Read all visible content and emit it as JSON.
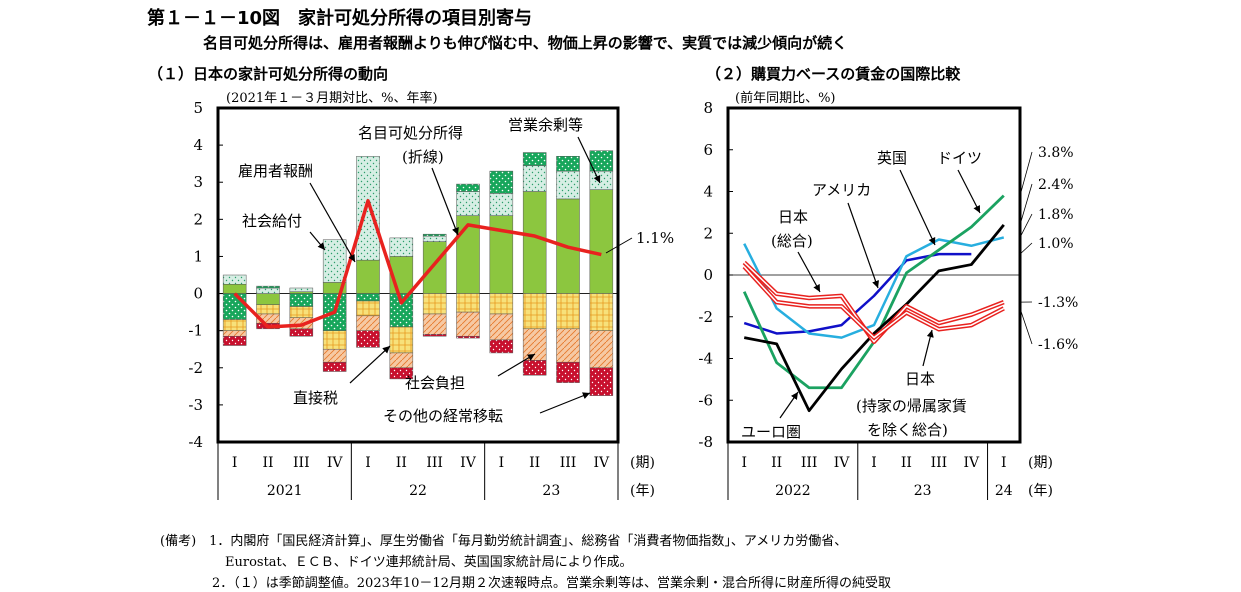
{
  "figure": {
    "title": "第１－１－10図　家計可処分所得の項目別寄与",
    "subtitle": "名目可処分所得は、雇用者報酬よりも伸び悩む中、物価上昇の影響で、実質では減少傾向が続く"
  },
  "panel1": {
    "title": "（１）日本の家計可処分所得の動向",
    "unit": "(2021年１－３月期対比、%、年率)"
  },
  "panel2": {
    "title": "（２）購買力ベースの賃金の国際比較",
    "unit": "(前年同期比、%)"
  },
  "colors": {
    "wages": "#8CC63F",
    "social_benefits": "#D6EEE4",
    "operating_surplus": "#17A65B",
    "direct_tax": "#F7E17A",
    "social_contrib": "#F6C9A3",
    "other_transfer": "#C8102E",
    "nominal_line": "#E8221F",
    "us": "#1010C8",
    "uk": "#27AEDF",
    "germany": "#1BA261",
    "eurozone": "#000000",
    "japan_line": "#E8221F"
  },
  "chart_data": [
    {
      "type": "bar",
      "title": "（１）日本の家計可処分所得の動向",
      "ylabel": "(2021年１－３月期対比、%、年率)",
      "ylim": [
        -4,
        5
      ],
      "yticks": [
        -4,
        -3,
        -2,
        -1,
        0,
        1,
        2,
        3,
        4,
        5
      ],
      "categories": [
        "I",
        "II",
        "III",
        "IV",
        "I",
        "II",
        "III",
        "IV",
        "I",
        "II",
        "III",
        "IV"
      ],
      "periods": [
        "2021",
        "2021",
        "2021",
        "2021",
        "22",
        "22",
        "22",
        "22",
        "23",
        "23",
        "23",
        "23"
      ],
      "year_labels": [
        "2021",
        "22",
        "23"
      ],
      "period_unit": "(期)",
      "year_unit": "(年)",
      "series": [
        {
          "name": "雇用者報酬",
          "values": [
            0.25,
            -0.3,
            0.05,
            0.3,
            0.9,
            1.0,
            1.4,
            2.1,
            2.1,
            2.75,
            2.55,
            2.8
          ]
        },
        {
          "name": "社会給付",
          "values": [
            0.25,
            0.15,
            0.1,
            1.15,
            2.8,
            0.5,
            0.15,
            0.65,
            0.6,
            0.7,
            0.75,
            0.5
          ]
        },
        {
          "name": "営業余剰等",
          "values": [
            -0.7,
            0.05,
            -0.35,
            -1.0,
            -0.2,
            -0.9,
            0.05,
            0.2,
            0.6,
            0.35,
            0.4,
            0.55
          ]
        },
        {
          "name": "直接税",
          "values": [
            -0.3,
            -0.25,
            -0.3,
            -0.5,
            -0.4,
            -0.7,
            -0.55,
            -0.5,
            -0.55,
            -0.95,
            -0.95,
            -1.0
          ]
        },
        {
          "name": "社会負担",
          "values": [
            -0.15,
            -0.25,
            -0.3,
            -0.35,
            -0.4,
            -0.4,
            -0.55,
            -0.65,
            -0.7,
            -0.85,
            -0.9,
            -1.0
          ]
        },
        {
          "name": "その他の経常移転",
          "values": [
            -0.25,
            -0.15,
            -0.2,
            -0.25,
            -0.45,
            -0.3,
            -0.05,
            -0.05,
            -0.35,
            -0.4,
            -0.55,
            -0.75
          ]
        }
      ],
      "line": {
        "name": "名目可処分所得",
        "values": [
          0.0,
          -0.9,
          -0.85,
          -0.5,
          2.5,
          -0.25,
          0.8,
          1.85,
          1.7,
          1.55,
          1.25,
          1.05
        ]
      },
      "annotations": [
        "名目可処分所得",
        "(折線)",
        "雇用者報酬",
        "社会給付",
        "営業余剰等",
        "直接税",
        "社会負担",
        "その他の経常移転",
        "1.1%"
      ]
    },
    {
      "type": "line",
      "title": "（２）購買力ベースの賃金の国際比較",
      "ylabel": "(前年同期比、%)",
      "ylim": [
        -8,
        8
      ],
      "yticks": [
        -8,
        -6,
        -4,
        -2,
        0,
        2,
        4,
        6,
        8
      ],
      "categories": [
        "I",
        "II",
        "III",
        "IV",
        "I",
        "II",
        "III",
        "IV",
        "I"
      ],
      "periods": [
        "2022",
        "2022",
        "2022",
        "2022",
        "23",
        "23",
        "23",
        "23",
        "24"
      ],
      "year_labels": [
        "2022",
        "23",
        "24"
      ],
      "period_unit": "(期)",
      "year_unit": "(年)",
      "series": [
        {
          "name": "アメリカ",
          "values": [
            -2.3,
            -2.8,
            -2.7,
            -2.4,
            -1.0,
            0.7,
            1.0,
            1.0,
            null
          ]
        },
        {
          "name": "英国",
          "values": [
            1.5,
            -1.6,
            -2.8,
            -3.0,
            -2.4,
            0.9,
            1.7,
            1.4,
            1.8
          ]
        },
        {
          "name": "ドイツ",
          "values": [
            -0.8,
            -4.2,
            -5.4,
            -5.4,
            -3.2,
            0.1,
            1.2,
            2.3,
            3.8
          ]
        },
        {
          "name": "ユーロ圏",
          "values": [
            -3.0,
            -3.3,
            -6.5,
            -4.5,
            -2.8,
            -1.4,
            0.2,
            0.5,
            2.4
          ]
        },
        {
          "name": "日本(総合)",
          "values": [
            0.6,
            -0.9,
            -1.1,
            -1.0,
            -3.2,
            -1.5,
            -2.3,
            -1.9,
            -1.3
          ]
        },
        {
          "name": "日本(持家の帰属家賃を除く総合)",
          "values": [
            0.4,
            -1.3,
            -1.5,
            -1.5,
            -3.0,
            -1.8,
            -2.6,
            -2.4,
            -1.6
          ]
        }
      ],
      "end_labels": [
        "3.8%",
        "2.4%",
        "1.8%",
        "1.0%",
        "-1.3%",
        "-1.6%"
      ],
      "annotations": [
        "英国",
        "ドイツ",
        "アメリカ",
        "日本",
        "(総合)",
        "日本",
        "(持家の帰属家賃",
        "を除く総合)",
        "ユーロ圏"
      ]
    }
  ],
  "notes": [
    "(備考)　1．内閣府「国民経済計算」、厚生労働省「毎月勤労統計調査」、総務省「消費者物価指数」、アメリカ労働省、",
    "　　　　　Eurostat、ＥＣＢ、ドイツ連邦統計局、英国国家統計局により作成。",
    "　　　　2．（１）は季節調整値。2023年10－12月期２次速報時点。営業余剰等は、営業余剰・混合所得に財産所得の純受取"
  ]
}
